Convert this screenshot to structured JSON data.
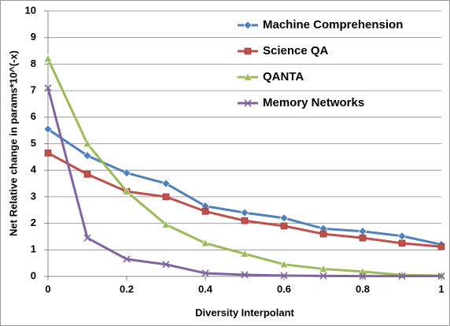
{
  "chart_data": {
    "type": "line",
    "x_label": "Diversity Interpolant",
    "y_label": "Net Relative change in params*10^(-x)",
    "x": [
      0,
      0.1,
      0.2,
      0.3,
      0.4,
      0.5,
      0.6,
      0.7,
      0.8,
      0.9,
      1
    ],
    "series": [
      {
        "name": "Machine Comprehension",
        "color": "#4f81bd",
        "marker": "diamond",
        "values": [
          5.55,
          4.55,
          3.9,
          3.5,
          2.65,
          2.4,
          2.2,
          1.8,
          1.7,
          1.52,
          1.2
        ]
      },
      {
        "name": "Science QA",
        "color": "#c0504d",
        "marker": "square",
        "values": [
          4.65,
          3.85,
          3.2,
          3.0,
          2.45,
          2.1,
          1.9,
          1.6,
          1.45,
          1.25,
          1.12
        ]
      },
      {
        "name": "QANTA",
        "color": "#9bbb59",
        "marker": "triangle",
        "values": [
          8.2,
          5.0,
          3.2,
          1.95,
          1.25,
          0.85,
          0.45,
          0.28,
          0.18,
          0.05,
          0.03
        ]
      },
      {
        "name": "Memory Networks",
        "color": "#8064a2",
        "marker": "x",
        "values": [
          7.1,
          1.45,
          0.65,
          0.45,
          0.12,
          0.06,
          0.03,
          0.02,
          0.01,
          0.01,
          0.01
        ]
      }
    ],
    "xlim": [
      0,
      1
    ],
    "xticks": [
      0,
      0.2,
      0.4,
      0.6,
      0.8,
      1
    ],
    "ylim": [
      0,
      10
    ],
    "yticks": [
      0,
      1,
      2,
      3,
      4,
      5,
      6,
      7,
      8,
      9,
      10
    ],
    "grid": true,
    "legend": "top-right"
  }
}
